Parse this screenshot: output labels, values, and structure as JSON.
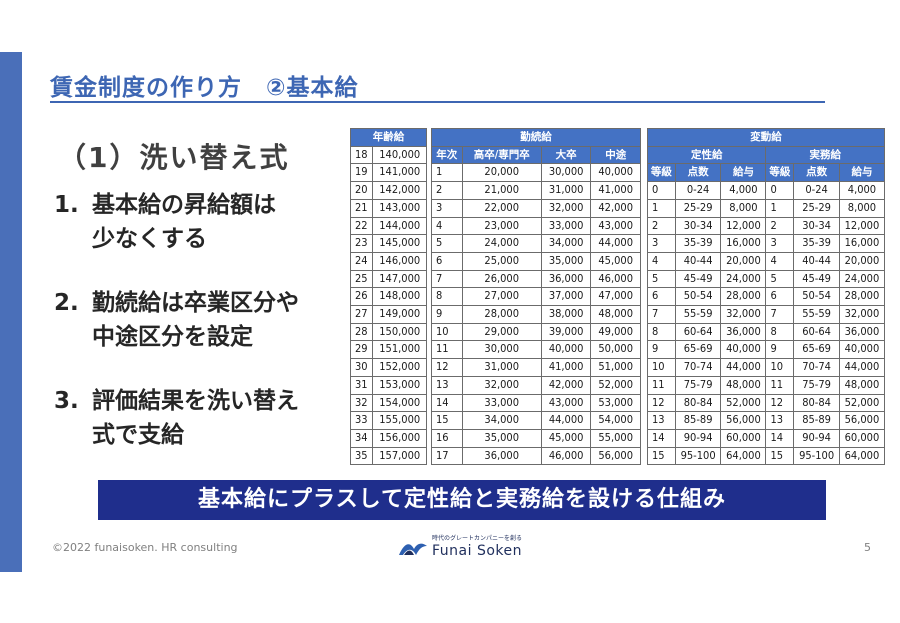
{
  "slide": {
    "title": "賃金制度の作り方　②基本給",
    "subhead": "（1）洗い替え式",
    "points": [
      {
        "num": "1.",
        "text": "基本給の昇給額は\n少なくする"
      },
      {
        "num": "2.",
        "text": "勤続給は卒業区分や\n中途区分を設定"
      },
      {
        "num": "3.",
        "text": "評価結果を洗い替え\n式で支給"
      }
    ],
    "banner": "基本給にプラスして定性給と実務給を設ける仕組み",
    "footer": {
      "copyright": "©2022 funaisoken. HR consulting",
      "page": "5",
      "logo_tagline": "時代のグレートカンパニーを創る",
      "logo_name": "Funai Soken"
    }
  },
  "tables": {
    "age": {
      "header": "年齢給",
      "rows": [
        [
          "18",
          "140,000"
        ],
        [
          "19",
          "141,000"
        ],
        [
          "20",
          "142,000"
        ],
        [
          "21",
          "143,000"
        ],
        [
          "22",
          "144,000"
        ],
        [
          "23",
          "145,000"
        ],
        [
          "24",
          "146,000"
        ],
        [
          "25",
          "147,000"
        ],
        [
          "26",
          "148,000"
        ],
        [
          "27",
          "149,000"
        ],
        [
          "28",
          "150,000"
        ],
        [
          "29",
          "151,000"
        ],
        [
          "30",
          "152,000"
        ],
        [
          "31",
          "153,000"
        ],
        [
          "32",
          "154,000"
        ],
        [
          "33",
          "155,000"
        ],
        [
          "34",
          "156,000"
        ],
        [
          "35",
          "157,000"
        ]
      ]
    },
    "tenure": {
      "header": "勤続給",
      "columns": [
        "年次",
        "高卒/専門卒",
        "大卒",
        "中途"
      ],
      "rows": [
        [
          "1",
          "20,000",
          "30,000",
          "40,000"
        ],
        [
          "2",
          "21,000",
          "31,000",
          "41,000"
        ],
        [
          "3",
          "22,000",
          "32,000",
          "42,000"
        ],
        [
          "4",
          "23,000",
          "33,000",
          "43,000"
        ],
        [
          "5",
          "24,000",
          "34,000",
          "44,000"
        ],
        [
          "6",
          "25,000",
          "35,000",
          "45,000"
        ],
        [
          "7",
          "26,000",
          "36,000",
          "46,000"
        ],
        [
          "8",
          "27,000",
          "37,000",
          "47,000"
        ],
        [
          "9",
          "28,000",
          "38,000",
          "48,000"
        ],
        [
          "10",
          "29,000",
          "39,000",
          "49,000"
        ],
        [
          "11",
          "30,000",
          "40,000",
          "50,000"
        ],
        [
          "12",
          "31,000",
          "41,000",
          "51,000"
        ],
        [
          "13",
          "32,000",
          "42,000",
          "52,000"
        ],
        [
          "14",
          "33,000",
          "43,000",
          "53,000"
        ],
        [
          "15",
          "34,000",
          "44,000",
          "54,000"
        ],
        [
          "16",
          "35,000",
          "45,000",
          "55,000"
        ],
        [
          "17",
          "36,000",
          "46,000",
          "56,000"
        ]
      ]
    },
    "variable": {
      "header": "変動給",
      "group1": "定性給",
      "group2": "実務給",
      "columns": [
        "等級",
        "点数",
        "給与",
        "等級",
        "点数",
        "給与"
      ],
      "rows": [
        [
          "0",
          "0-24",
          "4,000",
          "0",
          "0-24",
          "4,000"
        ],
        [
          "1",
          "25-29",
          "8,000",
          "1",
          "25-29",
          "8,000"
        ],
        [
          "2",
          "30-34",
          "12,000",
          "2",
          "30-34",
          "12,000"
        ],
        [
          "3",
          "35-39",
          "16,000",
          "3",
          "35-39",
          "16,000"
        ],
        [
          "4",
          "40-44",
          "20,000",
          "4",
          "40-44",
          "20,000"
        ],
        [
          "5",
          "45-49",
          "24,000",
          "5",
          "45-49",
          "24,000"
        ],
        [
          "6",
          "50-54",
          "28,000",
          "6",
          "50-54",
          "28,000"
        ],
        [
          "7",
          "55-59",
          "32,000",
          "7",
          "55-59",
          "32,000"
        ],
        [
          "8",
          "60-64",
          "36,000",
          "8",
          "60-64",
          "36,000"
        ],
        [
          "9",
          "65-69",
          "40,000",
          "9",
          "65-69",
          "40,000"
        ],
        [
          "10",
          "70-74",
          "44,000",
          "10",
          "70-74",
          "44,000"
        ],
        [
          "11",
          "75-79",
          "48,000",
          "11",
          "75-79",
          "48,000"
        ],
        [
          "12",
          "80-84",
          "52,000",
          "12",
          "80-84",
          "52,000"
        ],
        [
          "13",
          "85-89",
          "56,000",
          "13",
          "85-89",
          "56,000"
        ],
        [
          "14",
          "90-94",
          "60,000",
          "14",
          "90-94",
          "60,000"
        ],
        [
          "15",
          "95-100",
          "64,000",
          "15",
          "95-100",
          "64,000"
        ]
      ]
    }
  }
}
